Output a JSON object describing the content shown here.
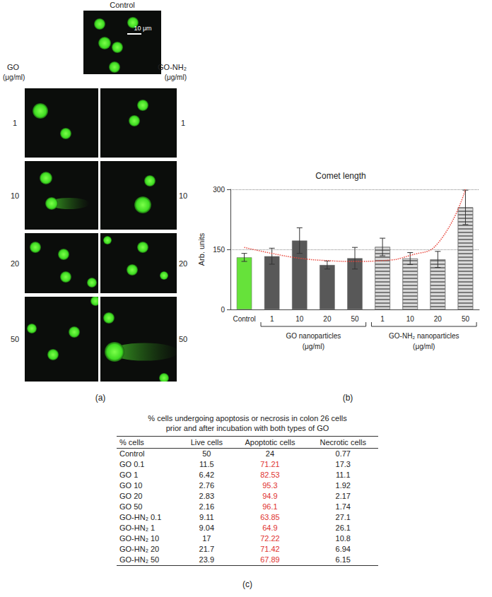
{
  "panel_labels": [
    "(a)",
    "(b)",
    "(c)"
  ],
  "panel_a": {
    "control_title": "Control",
    "scale_bar": "10 μm",
    "left_title": [
      "GO",
      "(μg/ml)"
    ],
    "right_title": [
      "GO-NH₂",
      "(μg/ml)"
    ],
    "concentrations": [
      "1",
      "10",
      "20",
      "50"
    ]
  },
  "chart_data": {
    "type": "bar",
    "title": "Comet length",
    "y_label": "Arb. units",
    "categories": [
      "Control",
      "1",
      "10",
      "20",
      "50",
      "1",
      "10",
      "20",
      "50"
    ],
    "values": [
      130,
      133,
      172,
      111,
      128,
      156,
      127,
      125,
      255
    ],
    "errors": [
      10,
      20,
      32,
      10,
      27,
      22,
      15,
      20,
      43
    ],
    "colors": [
      "#66e23a",
      "#585858",
      "#585858",
      "#585858",
      "#585858",
      "#d9d9d9",
      "#d9d9d9",
      "#d9d9d9",
      "#d9d9d9"
    ],
    "groups": [
      {
        "label": [
          "GO nanoparticles",
          "(μg/ml)"
        ],
        "start": 1,
        "end": 4
      },
      {
        "label": [
          "GO-NH₂ nanoparticles",
          "(μg/ml)"
        ],
        "start": 5,
        "end": 8,
        "line_style": "striped"
      }
    ],
    "trend": {
      "values": [
        155,
        140,
        128,
        122,
        120,
        122,
        135,
        165,
        300
      ],
      "color": "#e8463c",
      "line_style": "dotted"
    },
    "ylim": [
      0,
      300
    ],
    "yticks": [
      0,
      150,
      300
    ],
    "grid": true
  },
  "panel_c": {
    "title": [
      "% cells undergoing apoptosis or necrosis in colon 26 cells",
      "prior and after incubation with both types of GO"
    ],
    "header": [
      "% cells",
      "Live cells",
      "Apoptotic cells",
      "Necrotic cells"
    ],
    "rows": [
      [
        "Control",
        "50",
        "24",
        "0.77"
      ],
      [
        "GO 0.1",
        "11.5",
        "71.21",
        "17.3"
      ],
      [
        "GO 1",
        "6.42",
        "82.53",
        "11.1"
      ],
      [
        "GO 10",
        "2.76",
        "95.3",
        "1.92"
      ],
      [
        "GO 20",
        "2.83",
        "94.9",
        "2.17"
      ],
      [
        "GO 50",
        "2.16",
        "96.1",
        "1.74"
      ],
      [
        "GO-HN₂ 0.1",
        "9.11",
        "63.85",
        "27.1"
      ],
      [
        "GO-HN₂ 1",
        "9.04",
        "64.9",
        "26.1"
      ],
      [
        "GO-HN₂ 10",
        "17",
        "72.22",
        "10.8"
      ],
      [
        "GO-HN₂ 20",
        "21.7",
        "71.42",
        "6.94"
      ],
      [
        "GO-HN₂ 50",
        "23.9",
        "67.89",
        "6.15"
      ]
    ],
    "highlight_column": 2,
    "color": "#e0322f"
  }
}
